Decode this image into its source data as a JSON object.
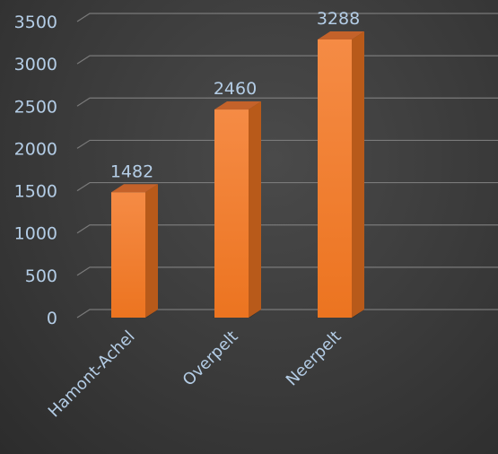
{
  "chart_data": {
    "type": "bar",
    "style": "3d-column",
    "categories": [
      "Hamont-Achel",
      "Overpelt",
      "Neerpelt"
    ],
    "values": [
      1482,
      2460,
      3288
    ],
    "title": "",
    "xlabel": "",
    "ylabel": "",
    "ylim": [
      0,
      3500
    ],
    "yticks": [
      0,
      500,
      1000,
      1500,
      2000,
      2500,
      3000,
      3500
    ],
    "grid": true,
    "legend": "none",
    "data_labels": true,
    "colors": {
      "bar_front": "#f07e2a",
      "bar_front_light": "#f58b45",
      "bar_side": "#b85a1a",
      "bar_top": "#c4622a",
      "label": "#b4cde6",
      "grid": "#7a7a7a"
    }
  }
}
